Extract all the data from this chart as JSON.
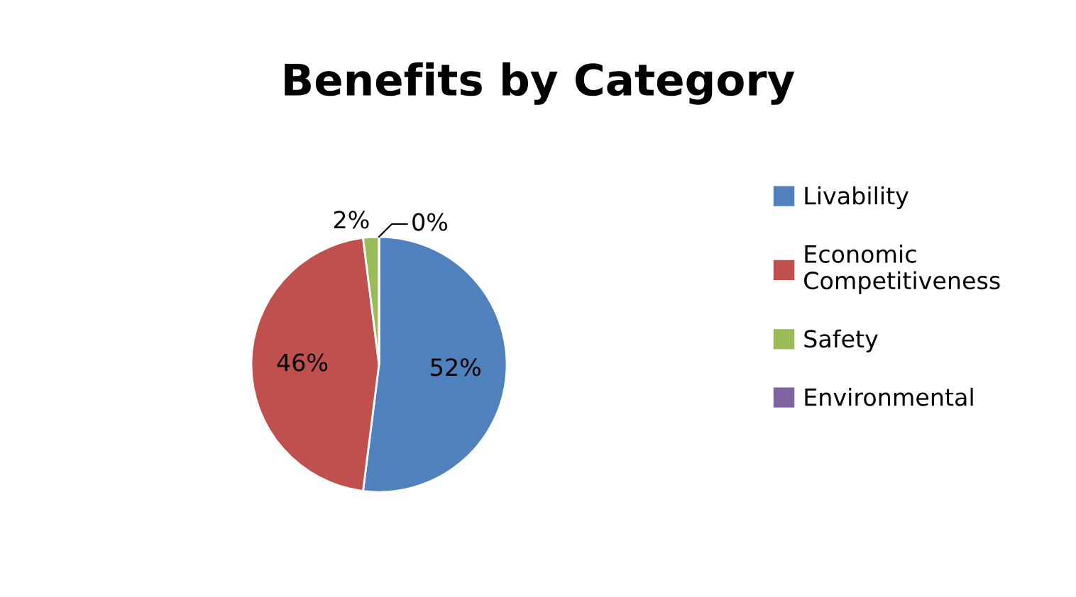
{
  "chart_data": {
    "type": "pie",
    "title": "Benefits by Category",
    "categories": [
      "Livability",
      "Economic Competitiveness",
      "Safety",
      "Environmental"
    ],
    "values": [
      52,
      46,
      2,
      0
    ],
    "colors": [
      "#4f81bd",
      "#c0504d",
      "#9bbb59",
      "#8064a2"
    ],
    "value_labels": [
      "52%",
      "46%",
      "2%",
      "0%"
    ],
    "legend": "right"
  }
}
